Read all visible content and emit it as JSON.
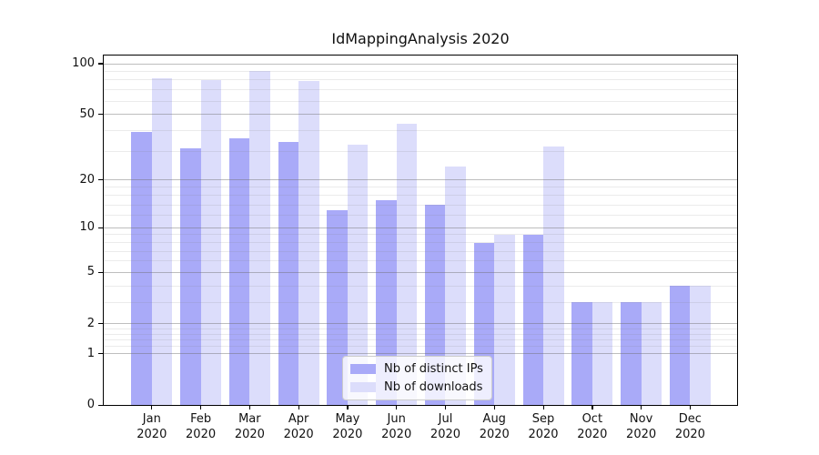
{
  "figure": {
    "background": "#ffffff"
  },
  "chart_data": {
    "type": "bar",
    "title": "IdMappingAnalysis 2020",
    "categories": [
      "Jan",
      "Feb",
      "Mar",
      "Apr",
      "May",
      "Jun",
      "Jul",
      "Aug",
      "Sep",
      "Oct",
      "Nov",
      "Dec"
    ],
    "category_year": "2020",
    "series": [
      {
        "name": "Nb of distinct IPs",
        "color": "#a9aaf8",
        "values": [
          39,
          31,
          36,
          34,
          13,
          15,
          14,
          8,
          9,
          3,
          3,
          4
        ]
      },
      {
        "name": "Nb of downloads",
        "color": "#dcddfb",
        "values": [
          82,
          80,
          91,
          79,
          33,
          44,
          24,
          9,
          32,
          3,
          3,
          4
        ]
      }
    ],
    "yscale": "log1p",
    "ylim": [
      0,
      113
    ],
    "yticks": [
      100,
      50,
      20,
      10,
      5,
      2,
      1,
      0
    ],
    "minor_yticks": [
      1.2,
      1.4,
      1.6,
      1.8,
      3,
      4,
      6,
      7,
      8,
      9,
      12,
      14,
      16,
      18,
      30,
      40,
      60,
      70,
      80,
      90
    ],
    "grid": true,
    "legend": {
      "position": "lower center",
      "labels": [
        "Nb of distinct IPs",
        "Nb of downloads"
      ]
    }
  },
  "colors": {
    "axis": "#000000",
    "grid_major": "#6e6e6e",
    "grid_minor": "#dddddd",
    "legend_border": "#cccccc",
    "text": "#111111"
  }
}
